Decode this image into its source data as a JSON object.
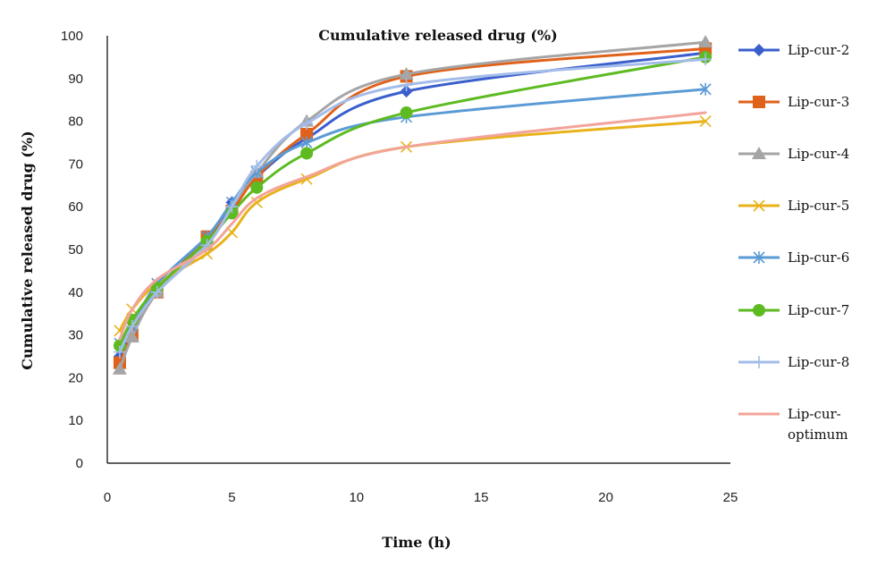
{
  "chart_data": {
    "type": "line",
    "title": "Cumulative released drug (%)",
    "xlabel": "Time (h)",
    "ylabel": "Cumulative released drug (%)",
    "xlim": [
      0,
      25
    ],
    "ylim": [
      0,
      100
    ],
    "x_ticks": [
      "0",
      "5",
      "10",
      "15",
      "20",
      "25"
    ],
    "y_ticks": [
      "0",
      "10",
      "20",
      "30",
      "40",
      "50",
      "60",
      "70",
      "80",
      "90",
      "100"
    ],
    "grid": false,
    "legend_position": "right",
    "x": [
      0.5,
      1,
      2,
      4,
      5,
      6,
      8,
      12,
      24
    ],
    "series": [
      {
        "name": "Lip-cur-2",
        "color": "#3A5FCD",
        "marker": "diamond",
        "values": [
          25,
          31,
          41,
          52,
          61,
          67,
          76,
          87,
          96
        ]
      },
      {
        "name": "Lip-cur-3",
        "color": "#E0611A",
        "marker": "square",
        "values": [
          23.5,
          30,
          40,
          53,
          59,
          67,
          77,
          90.5,
          97
        ]
      },
      {
        "name": "Lip-cur-4",
        "color": "#A5A5A5",
        "marker": "triangle",
        "values": [
          22,
          29.5,
          40,
          51,
          60,
          68,
          80,
          91,
          98.5
        ]
      },
      {
        "name": "Lip-cur-5",
        "color": "#E8B21A",
        "marker": "x",
        "values": [
          31,
          36,
          42,
          49,
          54,
          61,
          66.5,
          74,
          80
        ]
      },
      {
        "name": "Lip-cur-6",
        "color": "#5B9BD5",
        "marker": "star",
        "values": [
          28,
          32,
          42,
          53,
          61,
          68,
          75,
          81,
          87.5
        ]
      },
      {
        "name": "Lip-cur-7",
        "color": "#5DBB21",
        "marker": "circle",
        "values": [
          27.5,
          33.5,
          41,
          52,
          58.5,
          64.5,
          72.5,
          82,
          95
        ]
      },
      {
        "name": "Lip-cur-8",
        "color": "#A3BCE8",
        "marker": "plus",
        "values": [
          26,
          32,
          40,
          51,
          60,
          69.5,
          79.5,
          88.5,
          94.5
        ]
      },
      {
        "name": "Lip-cur-optimum",
        "color": "#F2A49A",
        "marker": "none",
        "values": [
          29,
          36,
          43,
          50,
          56,
          62,
          67,
          74,
          82
        ]
      }
    ]
  }
}
